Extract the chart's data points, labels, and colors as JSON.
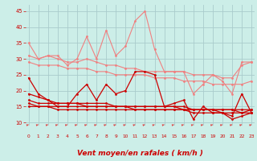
{
  "x": [
    0,
    1,
    2,
    3,
    4,
    5,
    6,
    7,
    8,
    9,
    10,
    11,
    12,
    13,
    14,
    15,
    16,
    17,
    18,
    19,
    20,
    21,
    22,
    23
  ],
  "series": [
    {
      "name": "rafales_high",
      "color": "#f08080",
      "linewidth": 0.8,
      "markersize": 2.0,
      "values": [
        35,
        30,
        31,
        31,
        28,
        30,
        37,
        30,
        39,
        31,
        34,
        42,
        45,
        33,
        26,
        26,
        26,
        19,
        22,
        25,
        23,
        19,
        29,
        29
      ]
    },
    {
      "name": "rafales_trend1",
      "color": "#f08080",
      "linewidth": 0.8,
      "markersize": 2.0,
      "values": [
        31,
        30,
        31,
        30,
        29,
        29,
        30,
        29,
        28,
        28,
        27,
        27,
        26,
        26,
        26,
        26,
        26,
        25,
        25,
        25,
        24,
        24,
        28,
        29
      ]
    },
    {
      "name": "rafales_trend2",
      "color": "#f08080",
      "linewidth": 0.8,
      "markersize": 2.0,
      "values": [
        29,
        28,
        28,
        28,
        27,
        27,
        27,
        26,
        26,
        25,
        25,
        25,
        25,
        24,
        24,
        24,
        23,
        23,
        23,
        22,
        22,
        22,
        22,
        23
      ]
    },
    {
      "name": "moyen_high",
      "color": "#cc0000",
      "linewidth": 0.9,
      "markersize": 2.0,
      "values": [
        24,
        19,
        17,
        15,
        15,
        19,
        22,
        17,
        22,
        19,
        20,
        26,
        26,
        25,
        15,
        16,
        17,
        11,
        15,
        13,
        13,
        12,
        19,
        13
      ]
    },
    {
      "name": "moyen_trend1",
      "color": "#cc0000",
      "linewidth": 0.9,
      "markersize": 2.0,
      "values": [
        19,
        18,
        17,
        16,
        16,
        16,
        16,
        16,
        16,
        15,
        15,
        15,
        15,
        15,
        15,
        15,
        15,
        14,
        14,
        14,
        14,
        14,
        14,
        14
      ]
    },
    {
      "name": "moyen_trend2",
      "color": "#cc0000",
      "linewidth": 0.9,
      "markersize": 2.0,
      "values": [
        17,
        16,
        16,
        16,
        16,
        16,
        15,
        15,
        15,
        15,
        15,
        15,
        15,
        15,
        15,
        15,
        14,
        14,
        14,
        14,
        14,
        14,
        13,
        14
      ]
    },
    {
      "name": "moyen_trend3",
      "color": "#cc0000",
      "linewidth": 0.9,
      "markersize": 2.0,
      "values": [
        16,
        15,
        15,
        15,
        15,
        15,
        15,
        15,
        15,
        15,
        15,
        14,
        14,
        14,
        14,
        14,
        14,
        14,
        14,
        14,
        13,
        13,
        13,
        13
      ]
    },
    {
      "name": "moyen_trend4",
      "color": "#cc0000",
      "linewidth": 0.9,
      "markersize": 2.0,
      "values": [
        15,
        15,
        15,
        14,
        14,
        14,
        14,
        14,
        14,
        14,
        14,
        14,
        14,
        14,
        14,
        14,
        14,
        13,
        13,
        13,
        13,
        11,
        12,
        13
      ]
    }
  ],
  "xlim": [
    0,
    23
  ],
  "ylim": [
    9,
    47
  ],
  "yticks": [
    10,
    15,
    20,
    25,
    30,
    35,
    40,
    45
  ],
  "xticks": [
    0,
    1,
    2,
    3,
    4,
    5,
    6,
    7,
    8,
    9,
    10,
    11,
    12,
    13,
    14,
    15,
    16,
    17,
    18,
    19,
    20,
    21,
    22,
    23
  ],
  "xlabel": "Vent moyen/en rafales ( km/h )",
  "background_color": "#cceee8",
  "grid_color": "#aacccc",
  "tick_color": "#cc0000",
  "xlabel_color": "#cc0000",
  "xlabel_fontsize": 6.5,
  "arrow_color": "#dd4444"
}
